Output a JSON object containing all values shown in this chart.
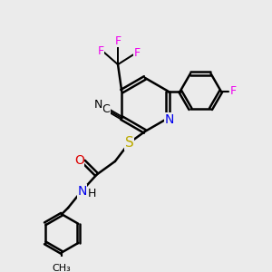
{
  "bg_color": "#ebebeb",
  "bond_color": "#000000",
  "bond_width": 1.8,
  "atom_colors": {
    "N": "#0000ee",
    "O": "#dd0000",
    "S": "#bbaa00",
    "F": "#ee00ee",
    "C": "#000000",
    "H": "#000000"
  },
  "fig_size": [
    3.0,
    3.0
  ],
  "dpi": 100
}
